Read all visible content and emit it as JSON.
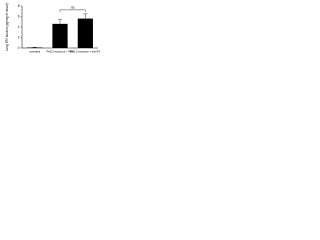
{
  "chart_data": {
    "type": "bar",
    "y_label": "Lung IFN burden (pg/mg of tissue)",
    "categories": [
      "untreated",
      "PM2.5 exposure + PBS",
      "PM2.5 exposure + anti-IFN"
    ],
    "values": [
      0.1,
      4.6,
      5.6
    ],
    "errors": [
      0.05,
      0.8,
      0.9
    ],
    "color": "#000000",
    "ylim": [
      0,
      8
    ],
    "yticks": [
      0,
      2,
      4,
      6,
      8
    ],
    "grid": false,
    "annotation": "ns"
  }
}
